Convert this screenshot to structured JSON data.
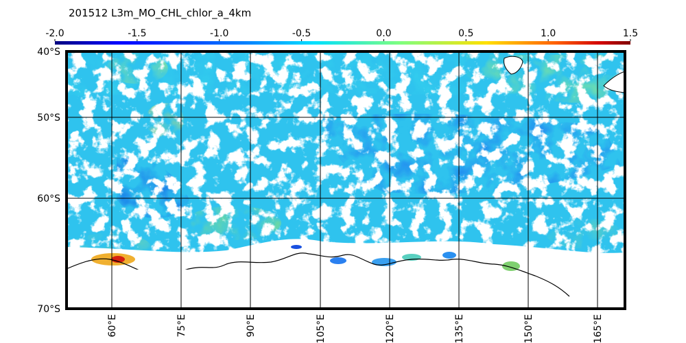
{
  "title": "201512    L3m_MO_CHL_chlor_a_4km",
  "colorbar": {
    "ticks": [
      "-2.0",
      "-1.5",
      "-1.0",
      "-0.5",
      "0.0",
      "0.5",
      "1.0",
      "1.5"
    ],
    "min": -2.0,
    "max": 1.5,
    "colormap": [
      "#00007f",
      "#0000ff",
      "#0080ff",
      "#00e0ff",
      "#7fff7f",
      "#ffe000",
      "#ff6000",
      "#d00000",
      "#7f0000"
    ]
  },
  "map": {
    "lat_labels": [
      "40°S",
      "50°S",
      "60°S",
      "70°S"
    ],
    "lon_labels": [
      "60°E",
      "75°E",
      "90°E",
      "105°E",
      "120°E",
      "135°E",
      "150°E",
      "165°E"
    ],
    "lat_range": [
      "40°S",
      "70°S"
    ],
    "lon_range": [
      "50°E",
      "171°E"
    ],
    "land_color": "#ffffff",
    "grid": true
  }
}
